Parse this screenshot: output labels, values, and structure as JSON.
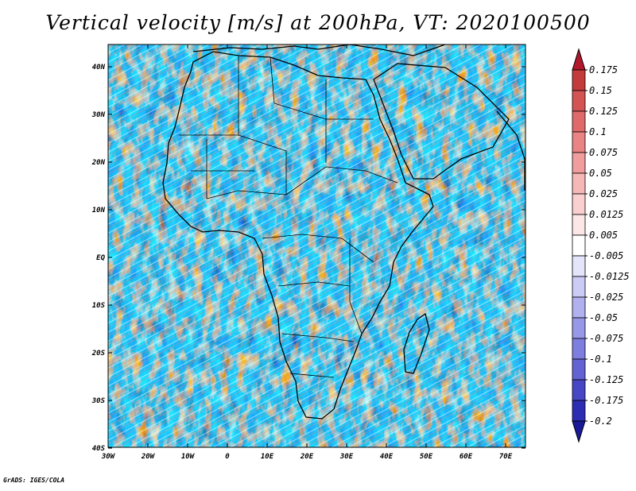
{
  "title": "Vertical velocity [m/s] at 200hPa, VT: 2020100500",
  "footer": "GrADS: IGES/COLA",
  "map": {
    "lon_range": [
      -30,
      75
    ],
    "lat_range": [
      -40,
      45
    ],
    "lon_ticks": [
      "30W",
      "20W",
      "10W",
      "0",
      "10E",
      "20E",
      "30E",
      "40E",
      "50E",
      "60E",
      "70E"
    ],
    "lat_ticks": [
      "40N",
      "30N",
      "20N",
      "10N",
      "EQ",
      "10S",
      "20S",
      "30S",
      "40S"
    ],
    "field": "vertical velocity",
    "level": "200hPa"
  },
  "colorbar": {
    "labels": [
      "0.175",
      "0.15",
      "0.125",
      "0.1",
      "0.075",
      "0.05",
      "0.025",
      "0.0125",
      "0.005",
      "-0.005",
      "-0.0125",
      "-0.025",
      "-0.05",
      "-0.075",
      "-0.1",
      "-0.125",
      "-0.175",
      "-0.2"
    ],
    "colors": [
      "#b2182b",
      "#c43b3b",
      "#d45353",
      "#e06a6a",
      "#ea8383",
      "#f19d9d",
      "#f6b7b7",
      "#f9cfcf",
      "#fce6e6",
      "#ffffff",
      "#e4e4fb",
      "#cbcbf6",
      "#b1b1f0",
      "#9898e8",
      "#7e7ee0",
      "#6363d4",
      "#4747c6",
      "#2d2db4",
      "#1a1a99"
    ]
  }
}
